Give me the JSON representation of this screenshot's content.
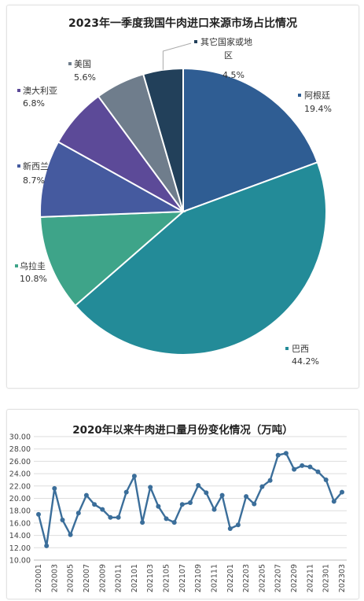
{
  "chart_data": [
    {
      "type": "pie",
      "title": "2023年一季度我国牛肉进口来源市场占比情况",
      "slices": [
        {
          "label": "阿根廷",
          "value": 19.4,
          "value_label": "19.4%",
          "color": "#2f5d93"
        },
        {
          "label": "巴西",
          "value": 44.2,
          "value_label": "44.2%",
          "color": "#238b98"
        },
        {
          "label": "乌拉圭",
          "value": 10.8,
          "value_label": "10.8%",
          "color": "#3ea489"
        },
        {
          "label": "新西兰",
          "value": 8.7,
          "value_label": "8.7%",
          "color": "#455a9f"
        },
        {
          "label": "澳大利亚",
          "value": 6.8,
          "value_label": "6.8%",
          "color": "#5c4a98"
        },
        {
          "label": "美国",
          "value": 5.6,
          "value_label": "5.6%",
          "color": "#6f7d8c"
        },
        {
          "label": "其它国家或地区",
          "value": 4.5,
          "value_label": "4.5%",
          "color": "#22405a"
        }
      ]
    },
    {
      "type": "line",
      "title": "2020年以来牛肉进口量月份变化情况（万吨）",
      "ylim": [
        10,
        30
      ],
      "y_ticks": [
        "10.00",
        "12.00",
        "14.00",
        "16.00",
        "18.00",
        "20.00",
        "22.00",
        "24.00",
        "26.00",
        "28.00",
        "30.00"
      ],
      "x": [
        "202001",
        "202002",
        "202003",
        "202004",
        "202005",
        "202006",
        "202007",
        "202008",
        "202009",
        "202010",
        "202011",
        "202012",
        "202101",
        "202102",
        "202103",
        "202104",
        "202105",
        "202106",
        "202107",
        "202108",
        "202109",
        "202110",
        "202111",
        "202112",
        "202201",
        "202202",
        "202203",
        "202204",
        "202205",
        "202206",
        "202207",
        "202208",
        "202209",
        "202210",
        "202211",
        "202212",
        "202301",
        "202302",
        "202303"
      ],
      "x_tick_labels": [
        "202001",
        "202003",
        "202005",
        "202007",
        "202009",
        "202011",
        "202101",
        "202103",
        "202105",
        "202107",
        "202109",
        "202111",
        "202201",
        "202203",
        "202205",
        "202207",
        "202209",
        "202211",
        "202301",
        "202303"
      ],
      "grid": true,
      "color": "#3b6e9a",
      "series": [
        {
          "values": [
            17.4,
            12.3,
            21.6,
            16.5,
            14.1,
            17.6,
            20.5,
            19.0,
            18.2,
            16.9,
            16.9,
            21.0,
            23.6,
            16.1,
            21.8,
            18.7,
            16.7,
            16.1,
            19.0,
            19.3,
            22.1,
            20.9,
            18.2,
            20.5,
            15.1,
            15.7,
            20.3,
            19.1,
            21.9,
            22.9,
            27.0,
            27.3,
            24.7,
            25.3,
            25.1,
            24.3,
            23.0,
            19.5,
            21.0
          ]
        }
      ]
    }
  ]
}
